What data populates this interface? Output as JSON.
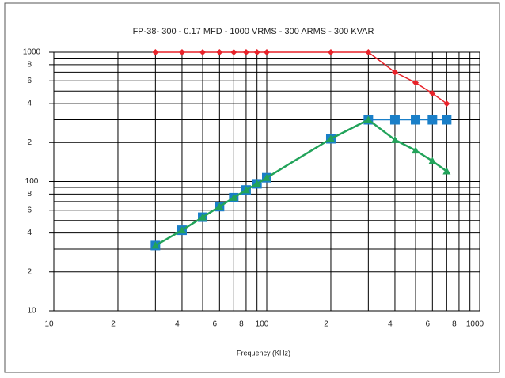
{
  "chart_data": {
    "type": "line",
    "title": "FP-38- 300 - 0.17 MFD - 1000 VRMS - 300 ARMS - 300 KVAR",
    "x_label": "Frequency (KHz)",
    "log_x": true,
    "log_y": true,
    "grid": true,
    "xlim": [
      10,
      1000
    ],
    "ylim": [
      10,
      1000
    ],
    "xticks": [
      10,
      {
        "value": 20,
        "label": "2"
      },
      {
        "value": 40,
        "label": "4"
      },
      {
        "value": 60,
        "label": "6"
      },
      {
        "value": 80,
        "label": "8"
      },
      100,
      {
        "value": 200,
        "label": "2"
      },
      {
        "value": 400,
        "label": "4"
      },
      {
        "value": 600,
        "label": "6"
      },
      {
        "value": 800,
        "label": "8"
      },
      1000
    ],
    "x_minor_grid": [
      30,
      50,
      70,
      90,
      300,
      500,
      700,
      900
    ],
    "yticks": [
      10,
      {
        "value": 20,
        "label": "2"
      },
      {
        "value": 40,
        "label": "4"
      },
      {
        "value": 60,
        "label": "6"
      },
      {
        "value": 80,
        "label": "8"
      },
      100,
      {
        "value": 200,
        "label": "2"
      },
      {
        "value": 400,
        "label": "4"
      },
      {
        "value": 600,
        "label": "6"
      },
      {
        "value": 800,
        "label": "8"
      },
      1000
    ],
    "y_minor_grid": [
      30,
      50,
      70,
      90,
      300,
      500,
      700,
      900
    ],
    "x": [
      30,
      40,
      50,
      60,
      70,
      80,
      90,
      100,
      200,
      300,
      400,
      500,
      600,
      700
    ],
    "series": [
      {
        "name": "VRMS",
        "color": "#e8232a",
        "marker": "diamond",
        "values": [
          1000,
          1000,
          1000,
          1000,
          1000,
          1000,
          1000,
          1000,
          1000,
          1000,
          700,
          580,
          480,
          400
        ]
      },
      {
        "name": "ARMS",
        "color": "#1a7fc8",
        "marker": "square",
        "values": [
          32,
          42,
          53,
          64,
          75,
          86,
          96,
          107,
          214,
          300,
          300,
          300,
          300,
          300
        ]
      },
      {
        "name": "KVAR",
        "color": "#22a35a",
        "marker": "triangle",
        "values": [
          32,
          42,
          53,
          64,
          75,
          86,
          96,
          107,
          214,
          300,
          210,
          174,
          144,
          120
        ]
      }
    ]
  }
}
